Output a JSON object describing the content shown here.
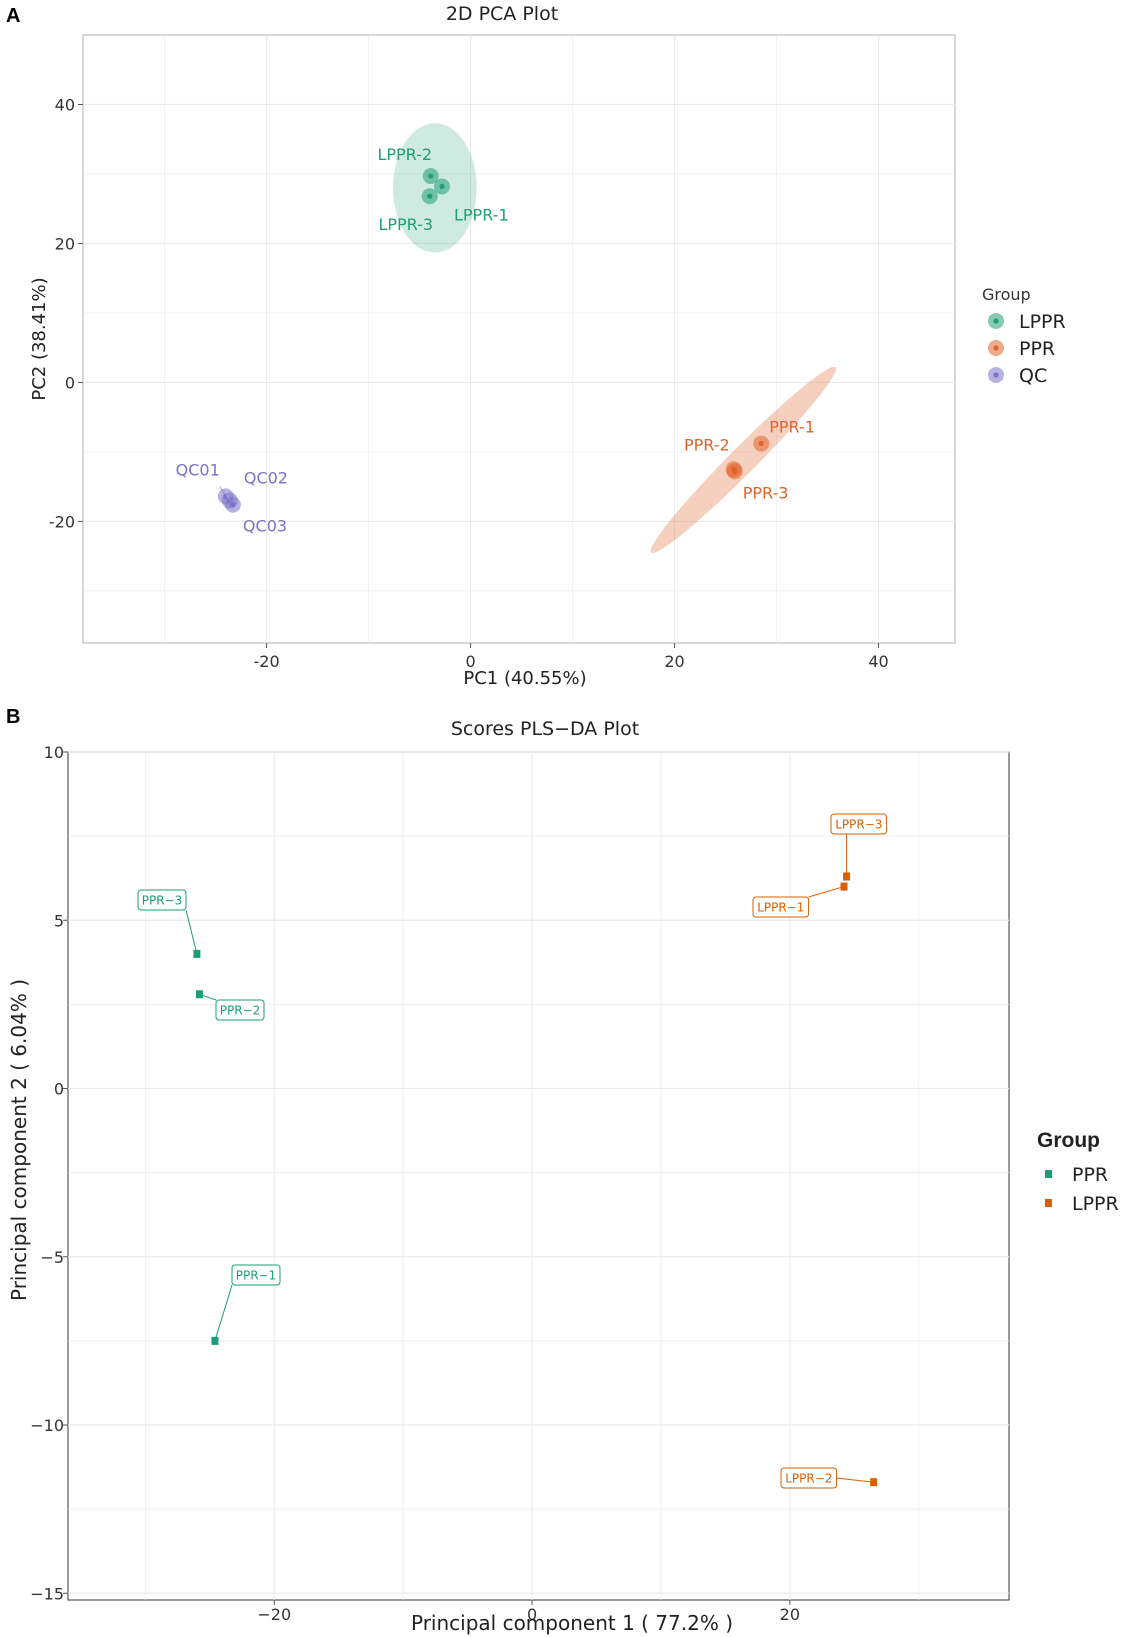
{
  "panels": {
    "a": "A",
    "b": "B"
  },
  "colors": {
    "lppr_pca": "#1f9e77",
    "ppr_pca": "#e0642a",
    "qc_pca": "#7b72c9",
    "ppr_pls": "#1b9e77",
    "lppr_pls": "#d95f02",
    "grid": "#ebebeb",
    "frame": "#bdbdbd"
  },
  "chart_data": [
    {
      "type": "scatter",
      "title": "2D PCA Plot",
      "xlabel": "PC1 (40.55%)",
      "ylabel": "PC2 (38.41%)",
      "xlim": [
        -38,
        47.5
      ],
      "ylim": [
        -37.5,
        50
      ],
      "xticks": [
        -20,
        0,
        20,
        40
      ],
      "xtick_labels": [
        "-20",
        "0",
        "20",
        "40"
      ],
      "yticks": [
        -20,
        0,
        20,
        40
      ],
      "ytick_labels": [
        "-20",
        "0",
        "20",
        "40"
      ],
      "legend_title": "Group",
      "legend_position": "right",
      "series": [
        {
          "name": "LPPR",
          "color_key": "lppr_pca",
          "points": [
            {
              "label": "LPPR-1",
              "x": -2.8,
              "y": 28.2
            },
            {
              "label": "LPPR-2",
              "x": -3.9,
              "y": 29.7
            },
            {
              "label": "LPPR-3",
              "x": -4.0,
              "y": 26.8
            }
          ],
          "ellipse": {
            "cx": -3.5,
            "cy": 28.0,
            "rx": 4.1,
            "ry": 9.3,
            "angle": 0
          }
        },
        {
          "name": "PPR",
          "color_key": "ppr_pca",
          "points": [
            {
              "label": "PPR-1",
              "x": 28.5,
              "y": -8.8
            },
            {
              "label": "PPR-2",
              "x": 25.8,
              "y": -12.5
            },
            {
              "label": "PPR-3",
              "x": 25.9,
              "y": -12.8
            }
          ],
          "ellipse": {
            "x1": 17.7,
            "y1": -24.5,
            "x2": 35.8,
            "y2": 2.2,
            "minor": 1.3
          }
        },
        {
          "name": "QC",
          "color_key": "qc_pca",
          "points": [
            {
              "label": "QC01",
              "x": -24.0,
              "y": -16.4
            },
            {
              "label": "QC02",
              "x": -23.6,
              "y": -17.0
            },
            {
              "label": "QC03",
              "x": -23.3,
              "y": -17.6
            }
          ]
        }
      ]
    },
    {
      "type": "scatter",
      "title": "Scores PLS−DA Plot",
      "xlabel": "Principal component 1 ( 77.2% )",
      "ylabel": "Principal component 2 ( 6.04% )",
      "xlim": [
        -36,
        37
      ],
      "ylim": [
        -15.2,
        10
      ],
      "xticks": [
        -20,
        0,
        20
      ],
      "xtick_labels": [
        "−20",
        "0",
        "20"
      ],
      "yticks": [
        10,
        5,
        0,
        -5,
        -10,
        -15
      ],
      "ytick_labels": [
        "10",
        "5",
        "0",
        "−5",
        "−10",
        "−15"
      ],
      "legend_title": "Group",
      "legend_position": "right",
      "series": [
        {
          "name": "PPR",
          "color_key": "ppr_pls",
          "points": [
            {
              "label": "PPR−1",
              "x": -24.6,
              "y": -7.5
            },
            {
              "label": "PPR−2",
              "x": -25.8,
              "y": 2.8
            },
            {
              "label": "PPR−3",
              "x": -26.0,
              "y": 4.0
            }
          ]
        },
        {
          "name": "LPPR",
          "color_key": "lppr_pls",
          "points": [
            {
              "label": "LPPR−1",
              "x": 24.2,
              "y": 6.0
            },
            {
              "label": "LPPR−2",
              "x": 26.5,
              "y": -11.7
            },
            {
              "label": "LPPR−3",
              "x": 24.4,
              "y": 6.3
            }
          ]
        }
      ]
    }
  ]
}
